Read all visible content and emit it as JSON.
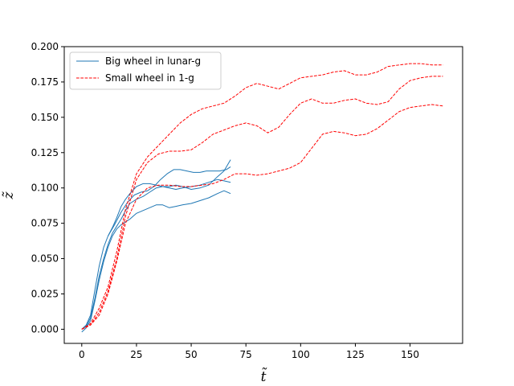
{
  "chart_data": {
    "type": "line",
    "xlabel": "t̃",
    "ylabel": "z̃",
    "xlim": [
      -8,
      174
    ],
    "ylim": [
      -0.01,
      0.2
    ],
    "x_ticks": [
      0,
      25,
      50,
      75,
      100,
      125,
      150
    ],
    "y_ticks": [
      0.0,
      0.025,
      0.05,
      0.075,
      0.1,
      0.125,
      0.15,
      0.175,
      0.2
    ],
    "grid": false,
    "legend_position": "upper-left",
    "legend": [
      {
        "label": "Big wheel in lunar-g",
        "color": "#1f77b4",
        "style": "solid"
      },
      {
        "label": "Small wheel in 1-g",
        "color": "#ff0000",
        "style": "dashed"
      }
    ],
    "series": [
      {
        "group": "Big wheel in lunar-g",
        "color": "#1f77b4",
        "style": "solid",
        "x": [
          0,
          2,
          4,
          6,
          8,
          10,
          12,
          14,
          16,
          18,
          20,
          22,
          25,
          28,
          31,
          34,
          37,
          40,
          43,
          46,
          50,
          54,
          58,
          62,
          65,
          68
        ],
        "y": [
          0,
          0.003,
          0.01,
          0.028,
          0.045,
          0.058,
          0.066,
          0.072,
          0.079,
          0.087,
          0.092,
          0.096,
          0.101,
          0.103,
          0.103,
          0.102,
          0.101,
          0.1,
          0.099,
          0.1,
          0.101,
          0.102,
          0.104,
          0.106,
          0.105,
          0.104
        ]
      },
      {
        "group": "Big wheel in lunar-g",
        "color": "#1f77b4",
        "style": "solid",
        "x": [
          0,
          2,
          4,
          6,
          8,
          10,
          12,
          14,
          16,
          18,
          20,
          22,
          25,
          28,
          31,
          34,
          37,
          40,
          43,
          46,
          50,
          54,
          58,
          62,
          65,
          68
        ],
        "y": [
          0,
          0.002,
          0.008,
          0.022,
          0.038,
          0.05,
          0.06,
          0.068,
          0.073,
          0.078,
          0.084,
          0.089,
          0.092,
          0.094,
          0.097,
          0.1,
          0.101,
          0.101,
          0.102,
          0.101,
          0.099,
          0.1,
          0.102,
          0.108,
          0.112,
          0.12
        ]
      },
      {
        "group": "Big wheel in lunar-g",
        "color": "#1f77b4",
        "style": "solid",
        "x": [
          0,
          2,
          4,
          6,
          8,
          10,
          12,
          14,
          16,
          18,
          20,
          22,
          25,
          28,
          31,
          34,
          37,
          40,
          43,
          46,
          50,
          54,
          58,
          62,
          65,
          68
        ],
        "y": [
          -0.002,
          0.001,
          0.006,
          0.02,
          0.035,
          0.048,
          0.058,
          0.066,
          0.071,
          0.074,
          0.076,
          0.078,
          0.082,
          0.084,
          0.086,
          0.088,
          0.088,
          0.086,
          0.087,
          0.088,
          0.089,
          0.091,
          0.093,
          0.096,
          0.098,
          0.096
        ]
      },
      {
        "group": "Big wheel in lunar-g",
        "color": "#1f77b4",
        "style": "solid",
        "x": [
          12,
          15,
          18,
          21,
          24,
          27,
          30,
          33,
          36,
          39,
          42,
          45,
          48,
          51,
          54,
          57,
          60,
          63,
          66,
          68
        ],
        "y": [
          0.066,
          0.074,
          0.083,
          0.09,
          0.095,
          0.097,
          0.098,
          0.101,
          0.106,
          0.11,
          0.113,
          0.113,
          0.112,
          0.111,
          0.111,
          0.112,
          0.112,
          0.112,
          0.113,
          0.115
        ]
      },
      {
        "group": "Small wheel in 1-g",
        "color": "#ff0000",
        "style": "dashed",
        "x": [
          0,
          4,
          8,
          12,
          16,
          20,
          25,
          30,
          35,
          40,
          45,
          50,
          55,
          60,
          65,
          70,
          75,
          80,
          85,
          90,
          95,
          100,
          105,
          110,
          115,
          120,
          125,
          130,
          135,
          140,
          145,
          150,
          155,
          160,
          165
        ],
        "y": [
          0,
          0.004,
          0.015,
          0.03,
          0.055,
          0.085,
          0.11,
          0.122,
          0.13,
          0.138,
          0.146,
          0.152,
          0.156,
          0.158,
          0.16,
          0.165,
          0.171,
          0.174,
          0.172,
          0.17,
          0.174,
          0.178,
          0.179,
          0.18,
          0.182,
          0.183,
          0.18,
          0.18,
          0.182,
          0.186,
          0.187,
          0.188,
          0.188,
          0.187,
          0.187
        ]
      },
      {
        "group": "Small wheel in 1-g",
        "color": "#ff0000",
        "style": "dashed",
        "x": [
          0,
          4,
          8,
          12,
          16,
          20,
          25,
          30,
          35,
          40,
          45,
          50,
          55,
          60,
          65,
          70,
          75,
          80,
          85,
          90,
          95,
          100,
          105,
          110,
          115,
          120,
          125,
          130,
          135,
          140,
          145,
          150,
          155,
          160,
          165
        ],
        "y": [
          0,
          0.003,
          0.012,
          0.027,
          0.05,
          0.08,
          0.106,
          0.118,
          0.124,
          0.126,
          0.126,
          0.127,
          0.132,
          0.138,
          0.141,
          0.144,
          0.146,
          0.144,
          0.139,
          0.143,
          0.152,
          0.16,
          0.163,
          0.16,
          0.16,
          0.162,
          0.163,
          0.16,
          0.159,
          0.161,
          0.17,
          0.176,
          0.178,
          0.179,
          0.179
        ]
      },
      {
        "group": "Small wheel in 1-g",
        "color": "#ff0000",
        "style": "dashed",
        "x": [
          0,
          4,
          8,
          12,
          16,
          20,
          25,
          30,
          35,
          40,
          45,
          50,
          55,
          60,
          65,
          70,
          75,
          80,
          85,
          90,
          95,
          100,
          105,
          110,
          115,
          120,
          125,
          130,
          135,
          140,
          145,
          150,
          155,
          160,
          165
        ],
        "y": [
          0,
          0.003,
          0.01,
          0.025,
          0.048,
          0.075,
          0.092,
          0.1,
          0.102,
          0.102,
          0.101,
          0.101,
          0.102,
          0.103,
          0.106,
          0.11,
          0.11,
          0.109,
          0.11,
          0.112,
          0.114,
          0.118,
          0.128,
          0.138,
          0.14,
          0.139,
          0.137,
          0.138,
          0.142,
          0.148,
          0.154,
          0.157,
          0.158,
          0.159,
          0.158
        ]
      }
    ]
  }
}
